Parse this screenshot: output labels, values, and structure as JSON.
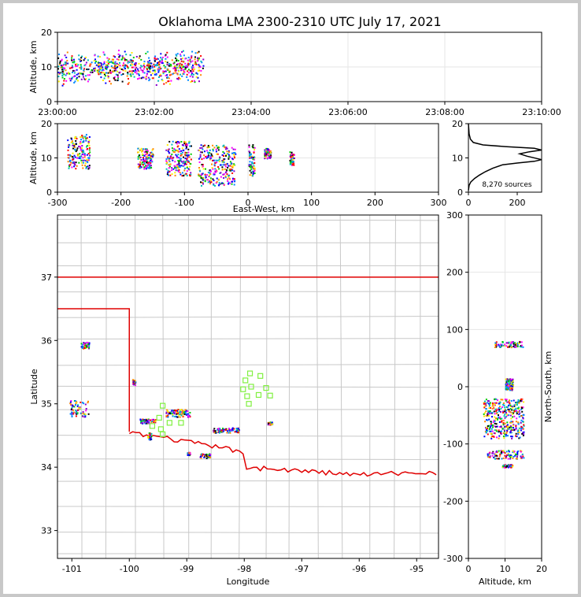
{
  "figure": {
    "title": "Oklahoma LMA 2300-2310 UTC July 17, 2021",
    "source_count_label": "8,270 sources"
  },
  "colors": {
    "state_border": "#e00000",
    "county_lines": "#c8c8c8",
    "station_marker": "#80f040",
    "grid": "#e6e6e6"
  },
  "chart_data": [
    {
      "panel": "altitude-vs-time",
      "type": "scatter",
      "xlabel": "",
      "ylabel": "Altitude, km",
      "xticks": [
        "23:00:00",
        "23:02:00",
        "23:04:00",
        "23:06:00",
        "23:08:00",
        "23:10:00"
      ],
      "xlim_minutes": [
        0,
        10
      ],
      "ylim": [
        0,
        20
      ],
      "yticks": [
        0,
        10,
        20
      ],
      "activity_window_minutes": [
        0,
        3
      ],
      "altitude_band_km": [
        2,
        15
      ]
    },
    {
      "panel": "altitude-vs-east-west",
      "type": "scatter",
      "xlabel": "East-West, km",
      "ylabel": "Altitude, km",
      "xlim": [
        -300,
        300
      ],
      "xticks": [
        -300,
        -200,
        -100,
        0,
        100,
        200,
        300
      ],
      "ylim": [
        0,
        20
      ],
      "yticks": [
        0,
        10,
        20
      ],
      "clusters": [
        {
          "x": [
            -285,
            -250
          ],
          "z": [
            7,
            17
          ]
        },
        {
          "x": [
            -175,
            -150
          ],
          "z": [
            7,
            13
          ]
        },
        {
          "x": [
            -130,
            -90
          ],
          "z": [
            5,
            15
          ]
        },
        {
          "x": [
            -80,
            -20
          ],
          "z": [
            2,
            14
          ]
        },
        {
          "x": [
            0,
            10
          ],
          "z": [
            5,
            14
          ]
        },
        {
          "x": [
            25,
            35
          ],
          "z": [
            10,
            13
          ]
        },
        {
          "x": [
            65,
            72
          ],
          "z": [
            8,
            12
          ]
        }
      ]
    },
    {
      "panel": "altitude-histogram",
      "type": "line",
      "xlabel": "",
      "xlim": [
        0,
        300
      ],
      "xticks": [
        0,
        200
      ],
      "ylim": [
        0,
        20
      ],
      "yticks": [
        0,
        10,
        20
      ],
      "profile": [
        [
          0,
          0.5
        ],
        [
          3,
          2
        ],
        [
          10,
          3
        ],
        [
          25,
          4
        ],
        [
          45,
          5
        ],
        [
          70,
          6
        ],
        [
          100,
          7
        ],
        [
          140,
          8
        ],
        [
          200,
          8.5
        ],
        [
          270,
          9
        ],
        [
          300,
          9.5
        ],
        [
          240,
          10.5
        ],
        [
          210,
          11.2
        ],
        [
          250,
          11.8
        ],
        [
          300,
          12.3
        ],
        [
          270,
          12.8
        ],
        [
          150,
          13.3
        ],
        [
          60,
          13.8
        ],
        [
          20,
          14.5
        ],
        [
          8,
          15.5
        ],
        [
          3,
          17
        ],
        [
          1,
          19
        ],
        [
          0,
          20
        ]
      ]
    },
    {
      "panel": "plan-view-map",
      "type": "scatter",
      "xlabel": "Longitude",
      "ylabel": "Latitude",
      "xlim": [
        -101.25,
        -94.62
      ],
      "xticks": [
        -101,
        -100,
        -99,
        -98,
        -97,
        -96,
        -95
      ],
      "ylim": [
        32.56,
        37.98
      ],
      "yticks": [
        33,
        34,
        35,
        36,
        37
      ],
      "stations": [
        [
          -97.9,
          35.48
        ],
        [
          -97.72,
          35.44
        ],
        [
          -97.98,
          35.37
        ],
        [
          -98.02,
          35.23
        ],
        [
          -97.88,
          35.27
        ],
        [
          -97.62,
          35.25
        ],
        [
          -97.75,
          35.14
        ],
        [
          -97.55,
          35.13
        ],
        [
          -97.95,
          35.12
        ],
        [
          -97.92,
          35.0
        ],
        [
          -99.42,
          34.97
        ],
        [
          -99.12,
          34.87
        ],
        [
          -99.48,
          34.78
        ],
        [
          -99.3,
          34.7
        ],
        [
          -99.1,
          34.7
        ],
        [
          -99.6,
          34.65
        ],
        [
          -99.45,
          34.6
        ],
        [
          -99.42,
          34.52
        ]
      ],
      "source_clusters": [
        {
          "lon": [
            -100.85,
            -100.7
          ],
          "lat": [
            35.88,
            35.98
          ]
        },
        {
          "lon": [
            -101.05,
            -100.72
          ],
          "lat": [
            34.8,
            35.06
          ]
        },
        {
          "lon": [
            -99.82,
            -99.55
          ],
          "lat": [
            34.7,
            34.77
          ]
        },
        {
          "lon": [
            -99.7,
            -99.62
          ],
          "lat": [
            34.44,
            34.56
          ]
        },
        {
          "lon": [
            -99.38,
            -98.95
          ],
          "lat": [
            34.8,
            34.92
          ]
        },
        {
          "lon": [
            -99.0,
            -98.95
          ],
          "lat": [
            34.2,
            34.24
          ]
        },
        {
          "lon": [
            -98.78,
            -98.6
          ],
          "lat": [
            34.15,
            34.22
          ]
        },
        {
          "lon": [
            -98.55,
            -98.1
          ],
          "lat": [
            34.55,
            34.63
          ]
        },
        {
          "lon": [
            -97.6,
            -97.52
          ],
          "lat": [
            34.68,
            34.72
          ]
        },
        {
          "lon": [
            -99.95,
            -99.9
          ],
          "lat": [
            35.3,
            35.4
          ]
        }
      ]
    },
    {
      "panel": "north-south-vs-altitude",
      "type": "scatter",
      "xlabel": "Altitude, km",
      "ylabel": "North-South, km",
      "xlim": [
        0,
        20
      ],
      "xticks": [
        0,
        10,
        20
      ],
      "ylim": [
        -300,
        300
      ],
      "yticks": [
        -300,
        -200,
        -100,
        0,
        100,
        200,
        300
      ],
      "clusters": [
        {
          "ns": [
            70,
            80
          ],
          "z": [
            7,
            15
          ]
        },
        {
          "ns": [
            -5,
            15
          ],
          "z": [
            10,
            12
          ]
        },
        {
          "ns": [
            -90,
            -20
          ],
          "z": [
            4,
            15
          ]
        },
        {
          "ns": [
            -125,
            -110
          ],
          "z": [
            5,
            15
          ]
        },
        {
          "ns": [
            -140,
            -135
          ],
          "z": [
            9,
            12
          ]
        }
      ]
    }
  ]
}
